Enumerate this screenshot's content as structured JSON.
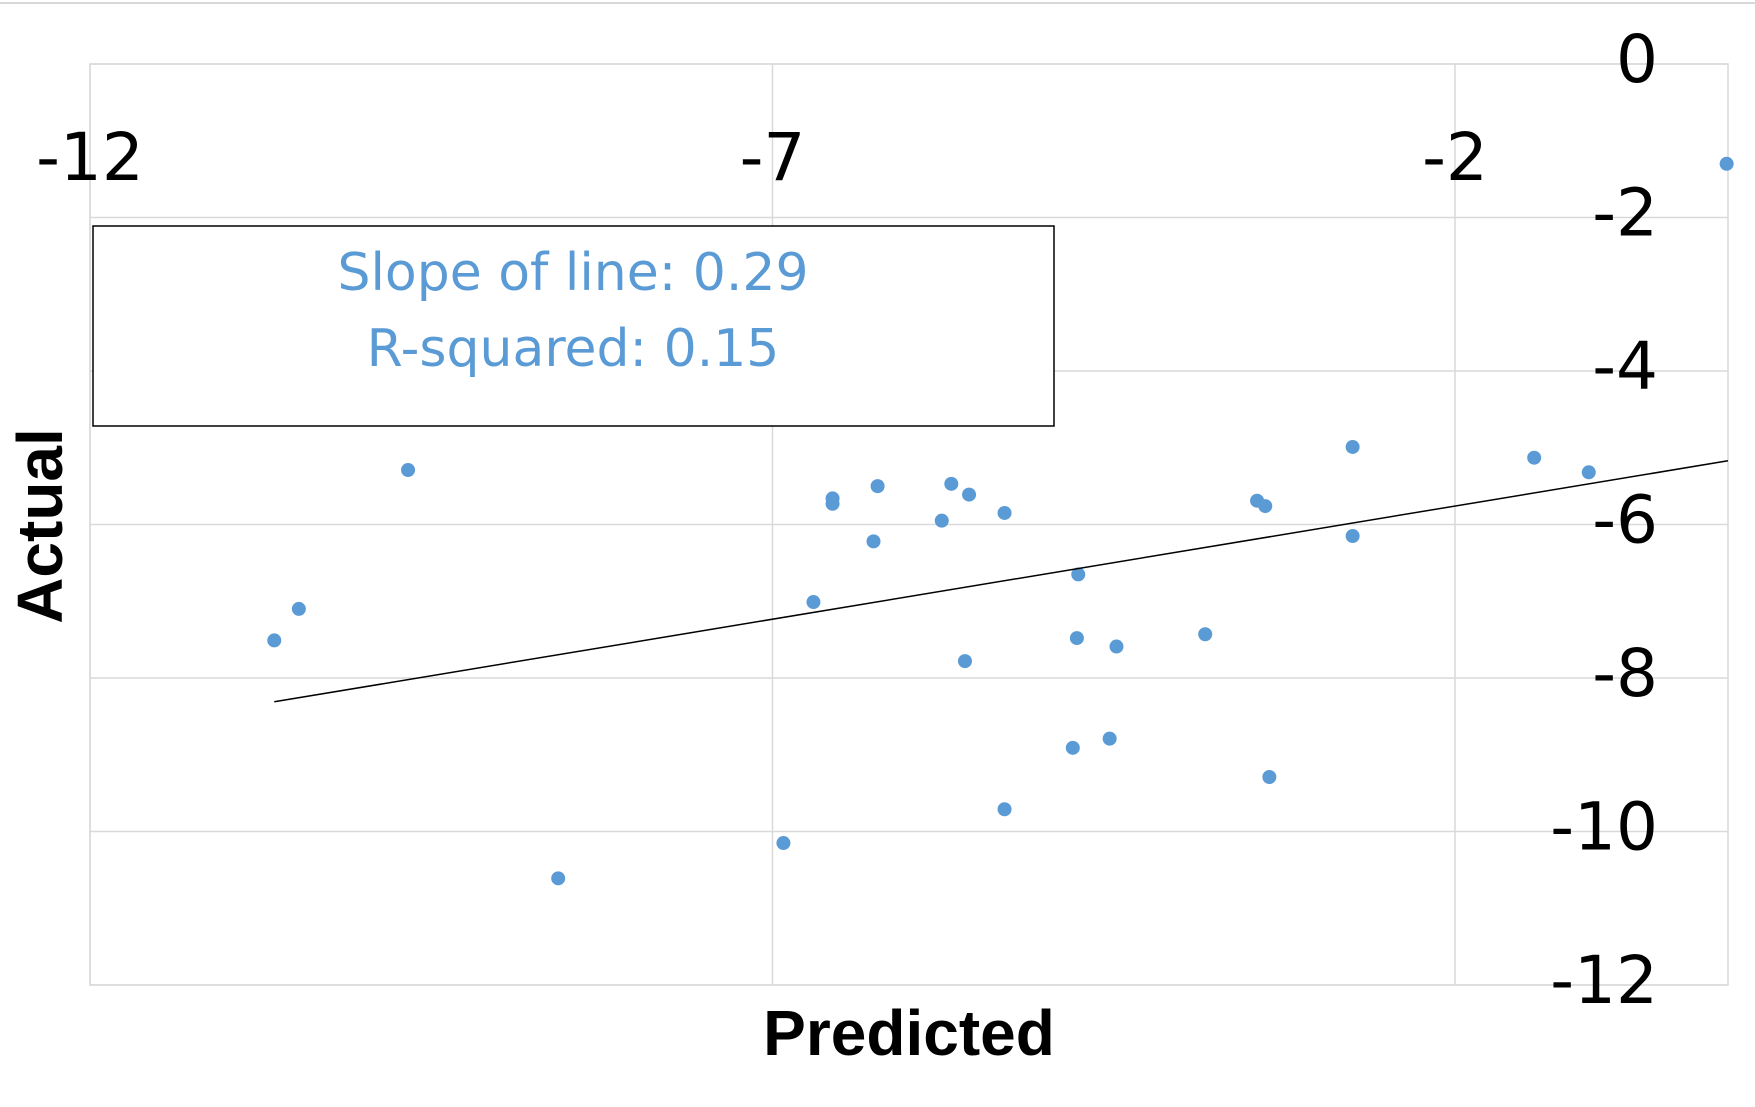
{
  "chart_data": {
    "type": "scatter",
    "x_label": "Predicted",
    "y_label": "Actual",
    "annotations": [
      "Slope of line: 0.29",
      "R-squared: 0.15"
    ],
    "series": [
      {
        "color": "#5b9bd5",
        "x": [
          -0.01,
          -10.65,
          -10.47,
          -9.67,
          -8.57,
          -6.92,
          -6.7,
          -6.56,
          -6.56,
          -6.23,
          -6.26,
          -5.69,
          -5.56,
          -5.76,
          -5.3,
          -5.59,
          -5.3,
          -4.8,
          -4.76,
          -4.77,
          -4.48,
          -4.53,
          -3.83,
          -3.45,
          -3.39,
          -3.36,
          -2.75,
          -2.75,
          -1.42,
          -1.02
        ],
        "values": [
          -1.3,
          -7.51,
          -7.1,
          -5.29,
          -10.61,
          -10.15,
          -7.01,
          -5.66,
          -5.73,
          -5.5,
          -6.22,
          -5.47,
          -5.61,
          -5.95,
          -5.85,
          -7.78,
          -9.71,
          -8.91,
          -6.65,
          -7.48,
          -7.59,
          -8.79,
          -7.43,
          -5.69,
          -5.76,
          -9.29,
          -4.99,
          -6.15,
          -5.13,
          -5.32
        ]
      }
    ],
    "trendline": {
      "color": "#000000",
      "x": [
        -10.65,
        0
      ],
      "values": [
        -8.31,
        -5.17
      ]
    },
    "xlim": [
      -12,
      0
    ],
    "ylim": [
      -12,
      0
    ],
    "xticks": [
      -12,
      -7,
      -2
    ],
    "yticks": [
      0,
      -2,
      -4,
      -6,
      -8,
      -10,
      -12
    ],
    "grid": true
  }
}
